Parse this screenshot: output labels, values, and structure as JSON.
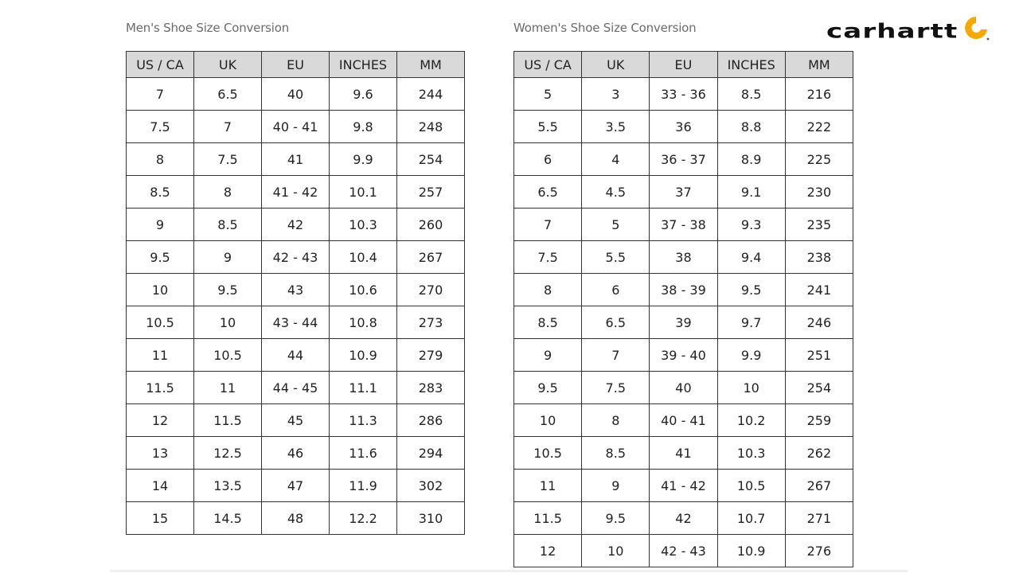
{
  "brand": {
    "name": "carhartt",
    "logo_color": "#f5a800"
  },
  "columns": [
    "US / CA",
    "UK",
    "EU",
    "INCHES",
    "MM"
  ],
  "mens": {
    "title": "Men's Shoe Size Conversion",
    "rows": [
      [
        "7",
        "6.5",
        "40",
        "9.6",
        "244"
      ],
      [
        "7.5",
        "7",
        "40 - 41",
        "9.8",
        "248"
      ],
      [
        "8",
        "7.5",
        "41",
        "9.9",
        "254"
      ],
      [
        "8.5",
        "8",
        "41 - 42",
        "10.1",
        "257"
      ],
      [
        "9",
        "8.5",
        "42",
        "10.3",
        "260"
      ],
      [
        "9.5",
        "9",
        "42 - 43",
        "10.4",
        "267"
      ],
      [
        "10",
        "9.5",
        "43",
        "10.6",
        "270"
      ],
      [
        "10.5",
        "10",
        "43 - 44",
        "10.8",
        "273"
      ],
      [
        "11",
        "10.5",
        "44",
        "10.9",
        "279"
      ],
      [
        "11.5",
        "11",
        "44 - 45",
        "11.1",
        "283"
      ],
      [
        "12",
        "11.5",
        "45",
        "11.3",
        "286"
      ],
      [
        "13",
        "12.5",
        "46",
        "11.6",
        "294"
      ],
      [
        "14",
        "13.5",
        "47",
        "11.9",
        "302"
      ],
      [
        "15",
        "14.5",
        "48",
        "12.2",
        "310"
      ]
    ]
  },
  "womens": {
    "title": "Women's Shoe Size Conversion",
    "rows": [
      [
        "5",
        "3",
        "33 - 36",
        "8.5",
        "216"
      ],
      [
        "5.5",
        "3.5",
        "36",
        "8.8",
        "222"
      ],
      [
        "6",
        "4",
        "36 - 37",
        "8.9",
        "225"
      ],
      [
        "6.5",
        "4.5",
        "37",
        "9.1",
        "230"
      ],
      [
        "7",
        "5",
        "37 - 38",
        "9.3",
        "235"
      ],
      [
        "7.5",
        "5.5",
        "38",
        "9.4",
        "238"
      ],
      [
        "8",
        "6",
        "38 - 39",
        "9.5",
        "241"
      ],
      [
        "8.5",
        "6.5",
        "39",
        "9.7",
        "246"
      ],
      [
        "9",
        "7",
        "39 - 40",
        "9.9",
        "251"
      ],
      [
        "9.5",
        "7.5",
        "40",
        "10",
        "254"
      ],
      [
        "10",
        "8",
        "40 - 41",
        "10.2",
        "259"
      ],
      [
        "10.5",
        "8.5",
        "41",
        "10.3",
        "262"
      ],
      [
        "11",
        "9",
        "41 - 42",
        "10.5",
        "267"
      ],
      [
        "11.5",
        "9.5",
        "42",
        "10.7",
        "271"
      ],
      [
        "12",
        "10",
        "42 - 43",
        "10.9",
        "276"
      ]
    ]
  }
}
